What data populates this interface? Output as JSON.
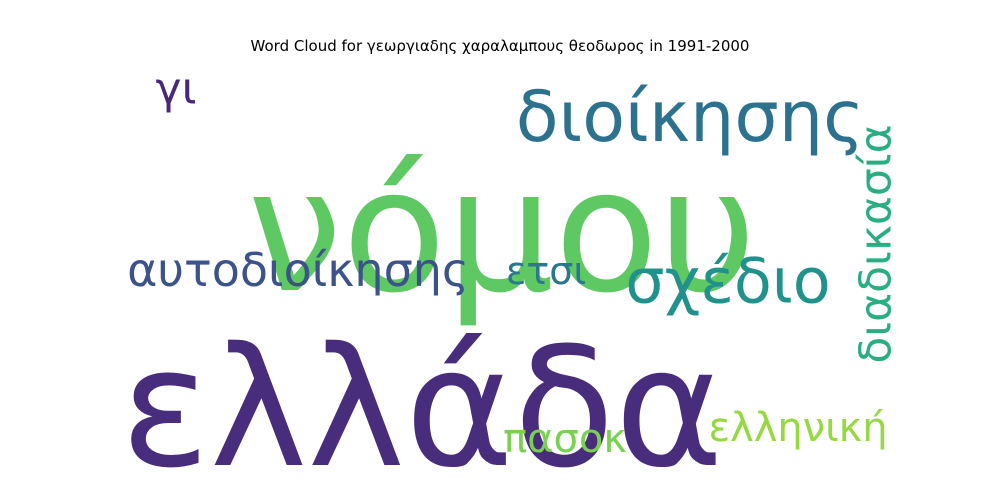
{
  "chart_data": {
    "type": "wordcloud",
    "title": "Word Cloud for γεωργιαδης χαραλαμπους θεοδωρος in 1991-2000",
    "words": [
      {
        "text": "νόμου",
        "weight": 1.0,
        "color": "#5ec962"
      },
      {
        "text": "ελλάδα",
        "weight": 0.95,
        "color": "#472d7b"
      },
      {
        "text": "διοίκησης",
        "weight": 0.45,
        "color": "#2c728e"
      },
      {
        "text": "σχέδιο",
        "weight": 0.4,
        "color": "#21918c"
      },
      {
        "text": "αυτοδιοίκησης",
        "weight": 0.3,
        "color": "#3b528b"
      },
      {
        "text": "διαδικασία",
        "weight": 0.3,
        "color": "#28ae80"
      },
      {
        "text": "ελληνική",
        "weight": 0.28,
        "color": "#95d840"
      },
      {
        "text": "πασοκ",
        "weight": 0.27,
        "color": "#7ad151"
      },
      {
        "text": "ετσι",
        "weight": 0.25,
        "color": "#2a788e"
      },
      {
        "text": "γι",
        "weight": 0.25,
        "color": "#482878"
      }
    ]
  }
}
